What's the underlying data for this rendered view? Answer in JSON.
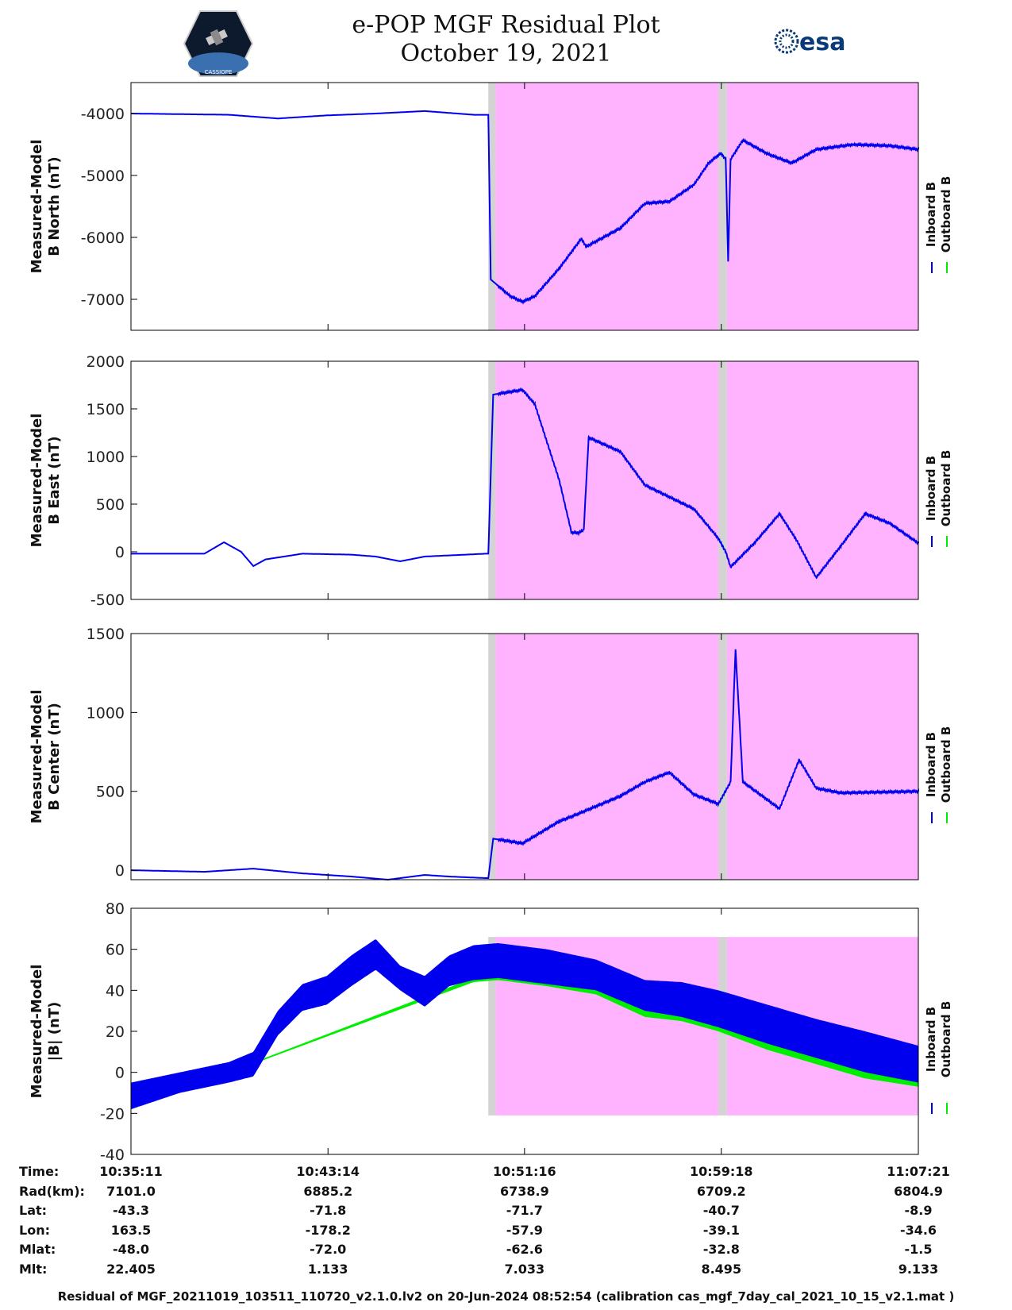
{
  "title": "e-POP MGF Residual Plot",
  "date": "October 19, 2021",
  "logos": {
    "left": "CASSIOPE",
    "right": "esa"
  },
  "legend": {
    "inboard": "Inboard B",
    "outboard": "Outboard B"
  },
  "colors": {
    "inboard": "#0000ee",
    "outboard": "#00ee00",
    "shade_magenta": "#ffb3ff",
    "shade_gray": "#d3d3d3"
  },
  "chart_data": [
    {
      "type": "line",
      "ylabel": [
        "Measured-Model",
        "B North (nT)"
      ],
      "ylim": [
        -7500,
        -3500
      ],
      "yticks": [
        -4000,
        -5000,
        -6000,
        -7000
      ],
      "xlim_min": [
        0,
        32.17
      ],
      "shaded_regions": [
        {
          "color": "gray",
          "from_min": 14.6,
          "to_min": 14.9
        },
        {
          "color": "magenta",
          "from_min": 14.9,
          "to_min": 24.0
        },
        {
          "color": "gray",
          "from_min": 24.0,
          "to_min": 24.35
        },
        {
          "color": "magenta",
          "from_min": 24.35,
          "to_min": 32.17
        }
      ],
      "series": [
        {
          "name": "Inboard B",
          "x_min": [
            0,
            4,
            6,
            8,
            10,
            12,
            14,
            14.6,
            14.7,
            15.5,
            16.0,
            16.5,
            17.5,
            18.4,
            18.6,
            20.0,
            21.0,
            22.0,
            23.0,
            23.6,
            24.1,
            24.3,
            24.4,
            24.5,
            25.0,
            26.0,
            27.0,
            28.0,
            29.5,
            31.0,
            32.17
          ],
          "values": [
            -4000,
            -4020,
            -4080,
            -4030,
            -4000,
            -3960,
            -4020,
            -4020,
            -6680,
            -6950,
            -7040,
            -6950,
            -6500,
            -6020,
            -6150,
            -5850,
            -5450,
            -5420,
            -5150,
            -4800,
            -4640,
            -4740,
            -6390,
            -4740,
            -4430,
            -4650,
            -4800,
            -4580,
            -4500,
            -4520,
            -4580
          ]
        }
      ]
    },
    {
      "type": "line",
      "ylabel": [
        "Measured-Model",
        "B East (nT)"
      ],
      "ylim": [
        -500,
        2000
      ],
      "yticks": [
        2000,
        1500,
        1000,
        500,
        0,
        -500
      ],
      "xlim_min": [
        0,
        32.17
      ],
      "series": [
        {
          "name": "Inboard B",
          "x_min": [
            0,
            3,
            3.8,
            4.5,
            5.0,
            5.5,
            7,
            9,
            10,
            11,
            12,
            14.5,
            14.6,
            14.8,
            16.0,
            16.5,
            17.5,
            18.0,
            18.3,
            18.5,
            18.7,
            20.0,
            21.0,
            23.0,
            24.0,
            24.3,
            24.5,
            25.5,
            26.5,
            27.2,
            28.0,
            29.0,
            30.0,
            31.0,
            32.17
          ],
          "values": [
            -20,
            -20,
            100,
            0,
            -150,
            -80,
            -20,
            -30,
            -50,
            -100,
            -50,
            -20,
            -20,
            1650,
            1700,
            1550,
            750,
            200,
            200,
            230,
            1200,
            1050,
            700,
            450,
            140,
            0,
            -160,
            100,
            400,
            120,
            -270,
            60,
            400,
            300,
            90
          ]
        }
      ]
    },
    {
      "type": "line",
      "ylabel": [
        "Measured-Model",
        "B Center (nT)"
      ],
      "ylim": [
        -60,
        1500
      ],
      "yticks": [
        1500,
        1000,
        500,
        0
      ],
      "xlim_min": [
        0,
        32.17
      ],
      "series": [
        {
          "name": "Inboard B",
          "x_min": [
            0,
            3,
            5,
            7,
            9,
            10.5,
            12,
            13,
            14.5,
            14.6,
            14.8,
            16.0,
            17.5,
            18.0,
            20.0,
            21.0,
            22.0,
            23.0,
            24.0,
            24.5,
            24.7,
            25.0,
            26.5,
            27.3,
            28.0,
            29.0,
            32.17
          ],
          "values": [
            0,
            -10,
            10,
            -20,
            -40,
            -60,
            -30,
            -40,
            -50,
            -50,
            200,
            170,
            310,
            340,
            470,
            560,
            620,
            480,
            420,
            560,
            1400,
            560,
            390,
            700,
            520,
            490,
            500
          ]
        }
      ]
    },
    {
      "type": "area",
      "ylabel": [
        "Measured-Model",
        "|B| (nT)"
      ],
      "ylim": [
        -40,
        80
      ],
      "yticks": [
        80,
        60,
        40,
        20,
        0,
        -20,
        -40
      ],
      "xlim_min": [
        0,
        32.17
      ],
      "series": [
        {
          "name": "Inboard B",
          "x_min": [
            0,
            2,
            4,
            5,
            6,
            7,
            8,
            9,
            10,
            11,
            12,
            13,
            14,
            15,
            17,
            19,
            21,
            22.5,
            24,
            26,
            28,
            30,
            32.17
          ],
          "upper": [
            -5,
            0,
            5,
            10,
            30,
            43,
            47,
            57,
            65,
            52,
            47,
            57,
            62,
            63,
            60,
            55,
            45,
            44,
            40,
            33,
            26,
            20,
            13
          ],
          "lower": [
            -18,
            -10,
            -5,
            -2,
            18,
            30,
            33,
            42,
            50,
            40,
            32,
            42,
            45,
            46,
            43,
            40,
            30,
            27,
            22,
            14,
            7,
            0,
            -5
          ]
        },
        {
          "name": "Outboard B",
          "x_min": [
            0,
            14,
            15,
            17,
            19,
            21,
            22.5,
            24,
            26,
            28,
            30,
            32.17
          ],
          "upper": [
            -18,
            46,
            47,
            44,
            41,
            30,
            27,
            23,
            15,
            8,
            1,
            -4
          ],
          "lower": [
            -18,
            44,
            45,
            42,
            38,
            27,
            25,
            20,
            11,
            4,
            -3,
            -7
          ]
        }
      ]
    }
  ],
  "ephemeris": {
    "labels": [
      "Time:",
      "Rad(km):",
      "Lat:",
      "Lon:",
      "Mlat:",
      "Mlt:"
    ],
    "columns": [
      {
        "time": "10:35:11",
        "rad": "7101.0",
        "lat": "-43.3",
        "lon": "163.5",
        "mlat": "-48.0",
        "mlt": "22.405"
      },
      {
        "time": "10:43:14",
        "rad": "6885.2",
        "lat": "-71.8",
        "lon": "-178.2",
        "mlat": "-72.0",
        "mlt": "1.133"
      },
      {
        "time": "10:51:16",
        "rad": "6738.9",
        "lat": "-71.7",
        "lon": "-57.9",
        "mlat": "-62.6",
        "mlt": "7.033"
      },
      {
        "time": "10:59:18",
        "rad": "6709.2",
        "lat": "-40.7",
        "lon": "-39.1",
        "mlat": "-32.8",
        "mlt": "8.495"
      },
      {
        "time": "11:07:21",
        "rad": "6804.9",
        "lat": "-8.9",
        "lon": "-34.6",
        "mlat": "-1.5",
        "mlt": "9.133"
      }
    ]
  },
  "footer": "Residual of MGF_20211019_103511_110720_v2.1.0.lv2 on 20-Jun-2024 08:52:54 (calibration cas_mgf_7day_cal_2021_10_15_v2.1.mat )"
}
